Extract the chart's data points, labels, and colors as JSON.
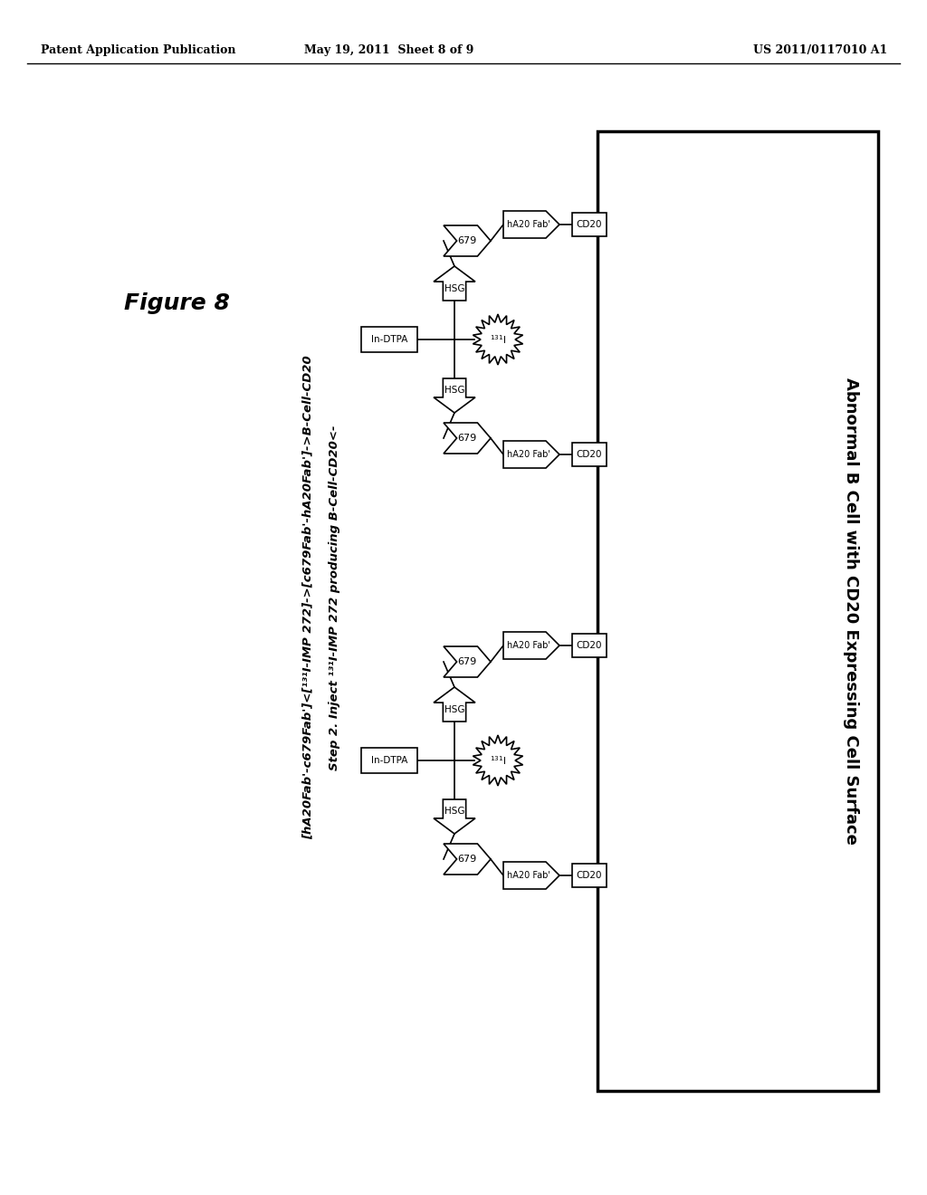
{
  "bg_color": "#ffffff",
  "header_left": "Patent Application Publication",
  "header_mid": "May 19, 2011  Sheet 8 of 9",
  "header_right": "US 2011/0117010 A1",
  "figure_label": "Figure 8",
  "rotated_line1": "Step 2. Inject 131I-IMP 272 producing B-Cell-CD20<-",
  "rotated_line2": "[hA20Fab'-c679Fab']<[131I-IMP 272]->[c679Fab'-hA20Fab']->B-Cell-CD20",
  "cell_surface_label": "Abnormal B Cell with CD20 Expressing Cell Surface",
  "font_color": "#000000"
}
